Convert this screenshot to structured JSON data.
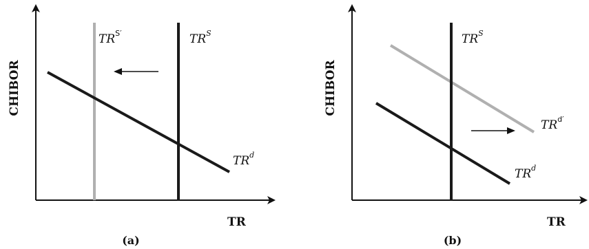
{
  "panels": [
    {
      "label": "(a)",
      "y_axis": "CHIBOR",
      "x_axis": "TR",
      "curves": {
        "supply_new": {
          "base": "TR",
          "sup": "S′"
        },
        "supply": {
          "base": "TR",
          "sup": "S"
        },
        "demand": {
          "base": "TR",
          "sup": "d"
        }
      },
      "arrow": "left"
    },
    {
      "label": "(b)",
      "y_axis": "CHIBOR",
      "x_axis": "TR",
      "curves": {
        "supply": {
          "base": "TR",
          "sup": "S"
        },
        "demand_new": {
          "base": "TR",
          "sup": "d′"
        },
        "demand": {
          "base": "TR",
          "sup": "d"
        }
      },
      "arrow": "right"
    }
  ],
  "colors": {
    "original": "#1a1a1a",
    "shifted": "#b0b0b0"
  }
}
